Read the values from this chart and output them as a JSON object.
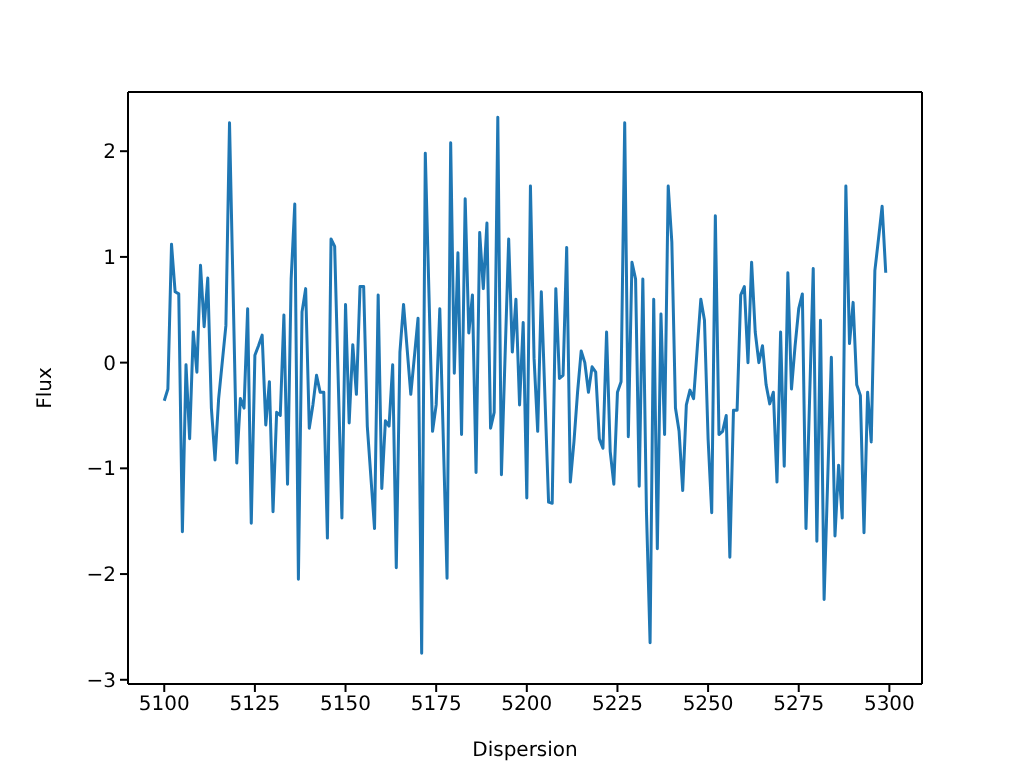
{
  "chart_data": {
    "type": "line",
    "xlabel": "Dispersion",
    "ylabel": "Flux",
    "xlim": [
      5090,
      5309
    ],
    "ylim": [
      -3.04,
      2.56
    ],
    "xticks": [
      5100,
      5125,
      5150,
      5175,
      5200,
      5225,
      5250,
      5275,
      5300
    ],
    "yticks": [
      -3,
      -2,
      -1,
      0,
      1,
      2
    ],
    "marker": "none",
    "line_style": "solid",
    "x": [
      5100,
      5101,
      5102,
      5103,
      5104,
      5105,
      5106,
      5107,
      5108,
      5109,
      5110,
      5111,
      5112,
      5113,
      5114,
      5115,
      5117,
      5118,
      5120,
      5121,
      5122,
      5123,
      5124,
      5125,
      5126,
      5127,
      5128,
      5129,
      5130,
      5131,
      5132,
      5133,
      5134,
      5135,
      5136,
      5137,
      5138,
      5139,
      5140,
      5141,
      5142,
      5143,
      5144,
      5145,
      5146,
      5147,
      5149,
      5150,
      5151,
      5152,
      5153,
      5154,
      5155,
      5156,
      5158,
      5159,
      5160,
      5161,
      5162,
      5163,
      5164,
      5165,
      5166,
      5168,
      5170,
      5171,
      5172,
      5174,
      5175,
      5176,
      5178,
      5179,
      5180,
      5181,
      5182,
      5183,
      5184,
      5185,
      5186,
      5187,
      5188,
      5189,
      5190,
      5191,
      5192,
      5193,
      5195,
      5196,
      5197,
      5198,
      5199,
      5200,
      5201,
      5202,
      5203,
      5204,
      5206,
      5207,
      5208,
      5209,
      5210,
      5211,
      5212,
      5213,
      5214,
      5215,
      5216,
      5217,
      5218,
      5219,
      5220,
      5221,
      5222,
      5223,
      5224,
      5225,
      5226,
      5227,
      5228,
      5229,
      5230,
      5231,
      5232,
      5233,
      5234,
      5235,
      5236,
      5237,
      5238,
      5239,
      5240,
      5241,
      5242,
      5243,
      5244,
      5245,
      5246,
      5247,
      5248,
      5249,
      5250,
      5251,
      5252,
      5253,
      5254,
      5255,
      5256,
      5257,
      5258,
      5259,
      5260,
      5261,
      5262,
      5263,
      5264,
      5265,
      5266,
      5267,
      5268,
      5269,
      5270,
      5271,
      5272,
      5273,
      5274,
      5275,
      5276,
      5277,
      5279,
      5280,
      5281,
      5282,
      5284,
      5285,
      5286,
      5287,
      5288,
      5289,
      5290,
      5291,
      5292,
      5293,
      5294,
      5295,
      5296,
      5297,
      5298,
      5299
    ],
    "series": [
      {
        "color": "#1f77b4",
        "values": [
          -0.36,
          -0.25,
          1.12,
          0.67,
          0.65,
          -1.6,
          -0.02,
          -0.72,
          0.29,
          -0.09,
          0.92,
          0.34,
          0.8,
          -0.43,
          -0.92,
          -0.34,
          0.35,
          2.27,
          -0.95,
          -0.34,
          -0.43,
          0.51,
          -1.52,
          0.07,
          0.16,
          0.26,
          -0.59,
          -0.18,
          -1.41,
          -0.47,
          -0.5,
          0.45,
          -1.15,
          0.79,
          1.5,
          -2.05,
          0.48,
          0.7,
          -0.62,
          -0.4,
          -0.12,
          -0.28,
          -0.28,
          -1.66,
          1.17,
          1.1,
          -1.47,
          0.55,
          -0.57,
          0.17,
          -0.3,
          0.72,
          0.72,
          -0.6,
          -1.57,
          0.64,
          -1.19,
          -0.55,
          -0.6,
          -0.02,
          -1.94,
          0.1,
          0.55,
          -0.3,
          0.42,
          -2.75,
          1.98,
          -0.65,
          -0.4,
          0.51,
          -2.04,
          2.08,
          -0.1,
          1.04,
          -0.68,
          1.55,
          0.28,
          0.64,
          -1.04,
          1.23,
          0.7,
          1.32,
          -0.62,
          -0.47,
          2.32,
          -1.06,
          1.17,
          0.1,
          0.6,
          -0.4,
          0.38,
          -1.28,
          1.67,
          0.04,
          -0.65,
          0.67,
          -1.32,
          -1.33,
          0.7,
          -0.15,
          -0.12,
          1.09,
          -1.13,
          -0.75,
          -0.28,
          0.11,
          0,
          -0.28,
          -0.04,
          -0.09,
          -0.72,
          -0.81,
          0.29,
          -0.84,
          -1.15,
          -0.28,
          -0.18,
          2.27,
          -0.7,
          0.95,
          0.79,
          -1.17,
          0.79,
          -1.41,
          -2.65,
          0.6,
          -1.76,
          0.46,
          -0.68,
          1.67,
          1.14,
          -0.43,
          -0.65,
          -1.21,
          -0.4,
          -0.26,
          -0.34,
          0.13,
          0.6,
          0.4,
          -0.72,
          -1.42,
          1.39,
          -0.68,
          -0.65,
          -0.5,
          -1.84,
          -0.45,
          -0.45,
          0.64,
          0.72,
          0,
          0.95,
          0.29,
          0,
          0.16,
          -0.21,
          -0.39,
          -0.28,
          -1.13,
          0.29,
          -0.98,
          0.85,
          -0.25,
          0.16,
          0.51,
          0.65,
          -1.57,
          0.89,
          -1.69,
          0.4,
          -2.24,
          0.05,
          -1.64,
          -0.97,
          -1.47,
          1.67,
          0.18,
          0.57,
          -0.21,
          -0.31,
          -1.61,
          -0.28,
          -0.75,
          0.87,
          1.17,
          1.48,
          0.85
        ]
      }
    ]
  }
}
